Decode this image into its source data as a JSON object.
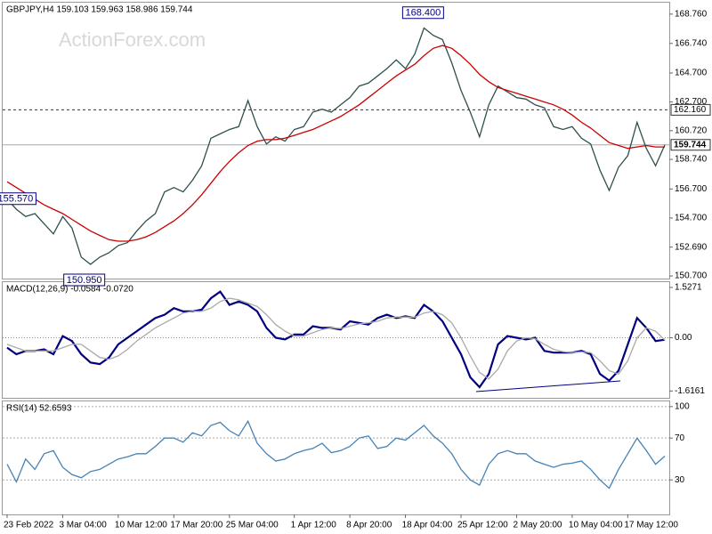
{
  "chart_data": [
    {
      "type": "line",
      "title": "GBPJPY,H4  159.103 159.963 158.986 159.744",
      "watermark": "ActionForex.com",
      "categories": [
        "23 Feb 2022",
        null,
        null,
        null,
        null,
        null,
        "3 Mar 04:00",
        null,
        null,
        null,
        null,
        null,
        "10 Mar 12:00",
        null,
        null,
        null,
        null,
        null,
        "17 Mar 20:00",
        null,
        null,
        null,
        null,
        null,
        "25 Mar 04:00",
        null,
        null,
        null,
        null,
        null,
        null,
        "1 Apr 12:00",
        null,
        null,
        null,
        null,
        null,
        "8 Apr 20:00",
        null,
        null,
        null,
        null,
        null,
        "18 Apr 04:00",
        null,
        null,
        null,
        null,
        null,
        "25 Apr 12:00",
        null,
        null,
        null,
        null,
        null,
        "2 May 20:00",
        null,
        null,
        null,
        null,
        null,
        "10 May 04:00",
        null,
        null,
        null,
        null,
        null,
        "17 May 12:00",
        null,
        null,
        null,
        null
      ],
      "series": [
        {
          "color": "#2f4f4f",
          "values": [
            156.0,
            155.3,
            154.8,
            155.0,
            154.3,
            153.6,
            154.8,
            154.0,
            152.0,
            151.5,
            152.0,
            152.3,
            152.8,
            153.0,
            153.8,
            154.5,
            155.0,
            156.5,
            156.8,
            156.5,
            157.3,
            158.3,
            160.2,
            160.5,
            160.8,
            161.0,
            162.8,
            161.0,
            159.8,
            160.3,
            160.0,
            160.8,
            161.0,
            162.0,
            162.2,
            162.0,
            162.5,
            163.0,
            163.8,
            164.0,
            164.5,
            165.0,
            165.6,
            165.0,
            166.0,
            167.8,
            167.3,
            167.0,
            165.4,
            163.5,
            162.0,
            160.3,
            162.5,
            163.8,
            163.4,
            163.0,
            162.9,
            162.5,
            162.3,
            161.0,
            160.8,
            161.0,
            160.2,
            159.8,
            158.0,
            156.6,
            158.2,
            159.0,
            161.3,
            159.5,
            158.3,
            159.744
          ]
        },
        {
          "color": "#cc0000",
          "values": [
            157.2,
            156.8,
            156.4,
            156.0,
            155.6,
            155.3,
            155.0,
            154.6,
            154.2,
            153.8,
            153.5,
            153.2,
            153.1,
            153.1,
            153.2,
            153.4,
            153.7,
            154.1,
            154.5,
            155.0,
            155.6,
            156.3,
            157.1,
            157.9,
            158.6,
            159.2,
            159.7,
            160.0,
            160.1,
            160.1,
            160.2,
            160.4,
            160.6,
            160.8,
            161.1,
            161.4,
            161.7,
            162.1,
            162.5,
            163.0,
            163.5,
            164.0,
            164.5,
            164.9,
            165.3,
            165.9,
            166.4,
            166.6,
            166.4,
            165.9,
            165.3,
            164.6,
            164.1,
            163.7,
            163.5,
            163.3,
            163.1,
            162.9,
            162.7,
            162.5,
            162.2,
            161.8,
            161.3,
            160.9,
            160.4,
            159.9,
            159.7,
            159.5,
            159.6,
            159.7,
            159.6,
            159.6
          ]
        }
      ],
      "ylim": [
        150.52,
        169.55
      ],
      "yticks": [
        {
          "value": 150.7,
          "label": "150.700"
        },
        {
          "value": 152.69,
          "label": "152.690"
        },
        {
          "value": 154.7,
          "label": "154.700"
        },
        {
          "value": 156.7,
          "label": "156.700"
        },
        {
          "value": 158.74,
          "label": "158.740"
        },
        {
          "value": 160.72,
          "label": "160.720"
        },
        {
          "value": 162.7,
          "label": "162.700"
        },
        {
          "value": 164.7,
          "label": "164.700"
        },
        {
          "value": 166.74,
          "label": "166.740"
        },
        {
          "value": 168.76,
          "label": "168.760"
        }
      ],
      "annotations": [
        {
          "value": 168.4,
          "label": "168.400"
        },
        {
          "value": 150.95,
          "label": "150.950"
        },
        {
          "value": 155.57,
          "label": "155.570"
        }
      ],
      "hlines": [
        {
          "value": 162.16,
          "label": "162.160",
          "style": "dashed"
        },
        {
          "value": 159.744,
          "label": "159.744",
          "style": "solid"
        }
      ]
    },
    {
      "type": "line",
      "title": "MACD(12,26,9) -0.0584 -0.0720",
      "zero_line": true,
      "series": [
        {
          "color": "#000080",
          "values": [
            -0.3,
            -0.5,
            -0.4,
            -0.4,
            -0.35,
            -0.5,
            0.05,
            -0.1,
            -0.5,
            -0.75,
            -0.8,
            -0.6,
            -0.2,
            0.0,
            0.2,
            0.4,
            0.6,
            0.7,
            0.9,
            0.8,
            0.8,
            0.85,
            1.2,
            1.4,
            1.0,
            1.1,
            1.0,
            0.8,
            0.3,
            0.0,
            -0.05,
            0.1,
            0.1,
            0.35,
            0.3,
            0.3,
            0.25,
            0.5,
            0.45,
            0.4,
            0.6,
            0.7,
            0.6,
            0.65,
            0.6,
            1.0,
            0.8,
            0.5,
            0.0,
            -0.5,
            -1.2,
            -1.5,
            -1.1,
            -0.2,
            0.05,
            0.0,
            -0.05,
            0.0,
            -0.4,
            -0.45,
            -0.45,
            -0.45,
            -0.4,
            -0.5,
            -1.1,
            -1.3,
            -1.0,
            -0.2,
            0.6,
            0.3,
            -0.1,
            -0.0584
          ]
        },
        {
          "color": "#aaaaaa",
          "values": [
            -0.2,
            -0.3,
            -0.4,
            -0.4,
            -0.4,
            -0.4,
            -0.3,
            -0.2,
            -0.2,
            -0.4,
            -0.6,
            -0.65,
            -0.55,
            -0.35,
            -0.1,
            0.1,
            0.3,
            0.45,
            0.6,
            0.75,
            0.8,
            0.8,
            0.9,
            1.1,
            1.2,
            1.15,
            1.05,
            0.95,
            0.7,
            0.4,
            0.2,
            0.05,
            0.05,
            0.15,
            0.25,
            0.3,
            0.28,
            0.35,
            0.42,
            0.45,
            0.5,
            0.6,
            0.63,
            0.63,
            0.62,
            0.75,
            0.8,
            0.7,
            0.45,
            0.0,
            -0.55,
            -1.05,
            -1.25,
            -0.95,
            -0.4,
            -0.1,
            0.0,
            -0.03,
            -0.2,
            -0.35,
            -0.42,
            -0.45,
            -0.43,
            -0.45,
            -0.7,
            -1.0,
            -1.1,
            -0.7,
            0.0,
            0.3,
            0.2,
            -0.072
          ]
        }
      ],
      "ylim": [
        -1.823,
        1.688
      ],
      "yticks": [
        1.5271,
        {
          "value": 0,
          "label": "0.00"
        },
        -1.6161
      ]
    },
    {
      "type": "line",
      "title": "RSI(14) 52.6593",
      "grid": true,
      "series": [
        {
          "color": "#4682b4",
          "values": [
            45,
            28,
            50,
            40,
            55,
            58,
            42,
            35,
            32,
            38,
            40,
            45,
            50,
            52,
            55,
            55,
            62,
            70,
            70,
            66,
            75,
            72,
            82,
            85,
            77,
            72,
            86,
            65,
            55,
            48,
            50,
            55,
            58,
            60,
            65,
            56,
            58,
            62,
            70,
            72,
            60,
            62,
            70,
            68,
            75,
            82,
            72,
            65,
            55,
            40,
            30,
            25,
            45,
            55,
            58,
            55,
            55,
            48,
            45,
            42,
            45,
            46,
            48,
            40,
            30,
            22,
            40,
            55,
            70,
            58,
            45,
            52.6593
          ]
        }
      ],
      "ylim": [
        -3,
        105
      ],
      "yticks": [
        30,
        70,
        100
      ]
    }
  ]
}
